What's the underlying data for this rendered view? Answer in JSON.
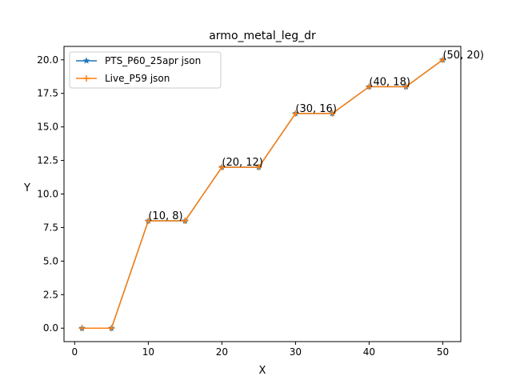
{
  "chart_data": {
    "type": "line",
    "title": "armo_metal_leg_dr",
    "xlabel": "X",
    "ylabel": "Y",
    "xlim": [
      -1.45,
      52.45
    ],
    "ylim": [
      -1.0,
      21.0
    ],
    "xticks": [
      0,
      10,
      20,
      30,
      40,
      50
    ],
    "xtick_labels": [
      "0",
      "10",
      "20",
      "30",
      "40",
      "50"
    ],
    "yticks": [
      0.0,
      2.5,
      5.0,
      7.5,
      10.0,
      12.5,
      15.0,
      17.5,
      20.0
    ],
    "ytick_labels": [
      "0.0",
      "2.5",
      "5.0",
      "7.5",
      "10.0",
      "12.5",
      "15.0",
      "17.5",
      "20.0"
    ],
    "grid": false,
    "legend_position": "top-left",
    "series": [
      {
        "name": "PTS_P60_25apr json",
        "color": "#1f77b4",
        "marker": "star",
        "x": [
          1,
          5,
          10,
          15,
          20,
          25,
          30,
          35,
          40,
          45,
          50
        ],
        "y": [
          0,
          0,
          8,
          8,
          12,
          12,
          16,
          16,
          18,
          18,
          20
        ]
      },
      {
        "name": "Live_P59 json",
        "color": "#ff7f0e",
        "marker": "plus",
        "x": [
          1,
          5,
          10,
          15,
          20,
          25,
          30,
          35,
          40,
          45,
          50
        ],
        "y": [
          0,
          0,
          8,
          8,
          12,
          12,
          16,
          16,
          18,
          18,
          20
        ]
      }
    ],
    "annotations": [
      {
        "text": "(10, 8)",
        "x": 10,
        "y": 8
      },
      {
        "text": "(20, 12)",
        "x": 20,
        "y": 12
      },
      {
        "text": "(30, 16)",
        "x": 30,
        "y": 16
      },
      {
        "text": "(40, 18)",
        "x": 40,
        "y": 18
      },
      {
        "text": "(50, 20)",
        "x": 50,
        "y": 20
      }
    ]
  }
}
